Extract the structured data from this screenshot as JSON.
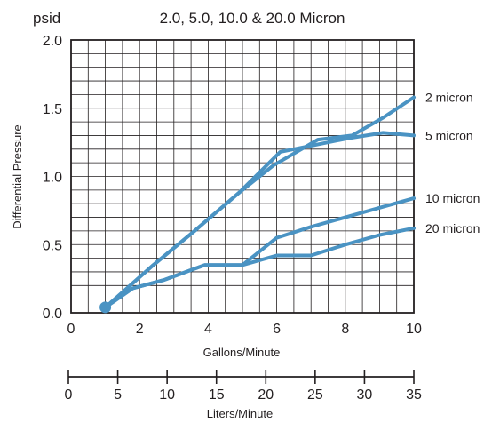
{
  "chart_data": {
    "type": "line",
    "title": "2.0, 5.0, 10.0 & 20.0 Micron",
    "y_unit_label": "psid",
    "ylabel": "Differential Pressure",
    "xlabel": "Gallons/Minute",
    "x2label": "Liters/Minute",
    "xlim": [
      0,
      10
    ],
    "ylim": [
      0,
      2.0
    ],
    "x_ticks": [
      "0",
      "2",
      "4",
      "6",
      "8",
      "10"
    ],
    "y_ticks": [
      "0.0",
      "0.5",
      "1.0",
      "1.5",
      "2.0"
    ],
    "x2_ticks": [
      "0",
      "5",
      "10",
      "15",
      "20",
      "25",
      "30",
      "35"
    ],
    "x2lim": [
      0,
      35
    ],
    "grid": true,
    "line_color": "#4a93c3",
    "start_point": {
      "x": 1.0,
      "y": 0.04
    },
    "series": [
      {
        "name": "2 micron",
        "x": [
          1.0,
          2.4,
          3.6,
          4.9,
          5.9,
          7.2,
          8.2,
          9.1,
          10.0
        ],
        "y": [
          0.04,
          0.35,
          0.6,
          0.88,
          1.08,
          1.27,
          1.3,
          1.43,
          1.58
        ]
      },
      {
        "name": "5 micron",
        "x": [
          1.0,
          2.4,
          3.6,
          4.9,
          6.1,
          7.3,
          8.1,
          9.1,
          10.0
        ],
        "y": [
          0.04,
          0.35,
          0.6,
          0.88,
          1.18,
          1.24,
          1.28,
          1.32,
          1.3
        ]
      },
      {
        "name": "10 micron",
        "x": [
          1.0,
          1.8,
          2.7,
          3.9,
          5.0,
          6.0,
          7.0,
          8.0,
          9.0,
          10.0
        ],
        "y": [
          0.04,
          0.18,
          0.24,
          0.35,
          0.35,
          0.55,
          0.63,
          0.7,
          0.77,
          0.84
        ]
      },
      {
        "name": "20 micron",
        "x": [
          1.0,
          1.8,
          2.7,
          3.9,
          5.0,
          6.0,
          7.0,
          8.0,
          9.0,
          10.0
        ],
        "y": [
          0.04,
          0.18,
          0.24,
          0.35,
          0.35,
          0.42,
          0.42,
          0.5,
          0.57,
          0.62
        ]
      }
    ]
  }
}
